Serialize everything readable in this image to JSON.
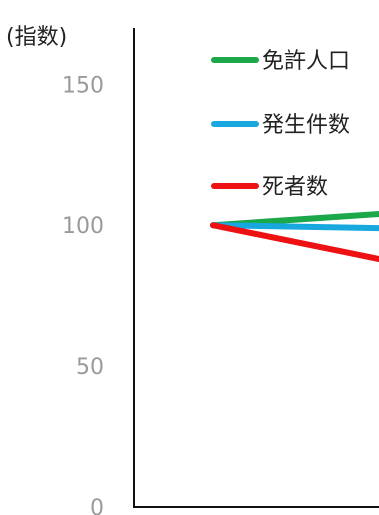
{
  "chart_data": {
    "type": "line",
    "title": "",
    "xlabel": "",
    "ylabel": "(指数)",
    "ylim": [
      0,
      170
    ],
    "y_ticks": [
      {
        "value": 0,
        "label": "0"
      },
      {
        "value": 50,
        "label": "50"
      },
      {
        "value": 100,
        "label": "100"
      },
      {
        "value": 150,
        "label": "150"
      }
    ],
    "x": [
      0,
      1
    ],
    "xlim": [
      0,
      1.22
    ],
    "grid": false,
    "legend_placement": "top-right",
    "series": [
      {
        "name": "免許人口",
        "color": "#1aa84a",
        "values": [
          100,
          104
        ]
      },
      {
        "name": "発生件数",
        "color": "#17a8e0",
        "values": [
          100,
          99
        ]
      },
      {
        "name": "死者数",
        "color": "#ee1111",
        "values": [
          100,
          88
        ]
      }
    ]
  }
}
